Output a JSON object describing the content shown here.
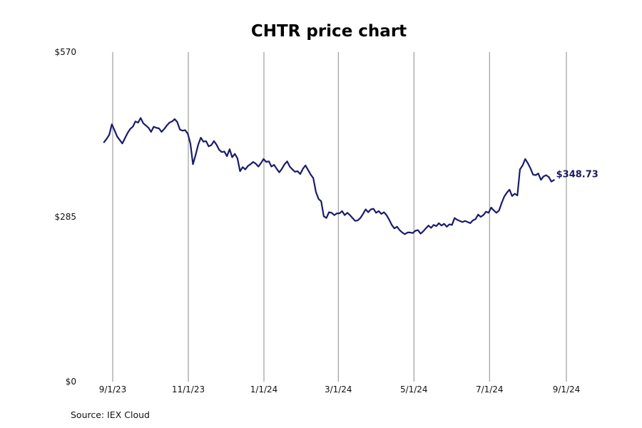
{
  "chart_data": {
    "type": "line",
    "title": "CHTR price chart",
    "source": "Source: IEX Cloud",
    "xlabel": "",
    "ylabel": "",
    "x_start": "2023-08-25",
    "x_end": "2024-08-22",
    "xlim": [
      "2023-08-25",
      "2024-09-01"
    ],
    "ylim": [
      0,
      570
    ],
    "x_ticks": [
      {
        "date": "2023-09-01",
        "label": "9/1/23"
      },
      {
        "date": "2023-11-01",
        "label": "11/1/23"
      },
      {
        "date": "2024-01-01",
        "label": "1/1/24"
      },
      {
        "date": "2024-03-01",
        "label": "3/1/24"
      },
      {
        "date": "2024-05-01",
        "label": "5/1/24"
      },
      {
        "date": "2024-07-01",
        "label": "7/1/24"
      },
      {
        "date": "2024-09-01",
        "label": "9/1/24"
      }
    ],
    "y_ticks": [
      {
        "value": 570,
        "label": "$570"
      },
      {
        "value": 285,
        "label": "$285"
      },
      {
        "value": 0,
        "label": "$0"
      }
    ],
    "grid": {
      "vertical": true,
      "horizontal": false
    },
    "end_label": "$348.73",
    "line_color": "#1b1b6b",
    "series": [
      {
        "values": [
          414,
          420,
          427,
          445,
          435,
          424,
          418,
          412,
          421,
          430,
          437,
          441,
          450,
          448,
          456,
          447,
          443,
          439,
          432,
          441,
          439,
          438,
          432,
          437,
          443,
          448,
          450,
          454,
          449,
          436,
          434,
          435,
          429,
          412,
          376,
          392,
          410,
          422,
          415,
          416,
          407,
          409,
          416,
          410,
          401,
          397,
          398,
          390,
          402,
          388,
          394,
          386,
          364,
          371,
          367,
          373,
          376,
          380,
          377,
          372,
          378,
          385,
          380,
          381,
          372,
          375,
          368,
          362,
          368,
          376,
          381,
          372,
          367,
          363,
          364,
          359,
          368,
          374,
          366,
          358,
          352,
          328,
          316,
          312,
          286,
          283,
          293,
          292,
          288,
          291,
          291,
          295,
          288,
          292,
          288,
          283,
          278,
          279,
          283,
          290,
          298,
          293,
          298,
          299,
          292,
          295,
          290,
          293,
          288,
          280,
          271,
          265,
          268,
          262,
          258,
          255,
          258,
          258,
          257,
          261,
          262,
          256,
          260,
          265,
          270,
          266,
          271,
          269,
          274,
          270,
          273,
          268,
          272,
          271,
          283,
          280,
          278,
          276,
          278,
          276,
          274,
          279,
          281,
          289,
          285,
          288,
          294,
          292,
          301,
          296,
          292,
          296,
          309,
          320,
          327,
          332,
          321,
          325,
          322,
          367,
          374,
          385,
          378,
          369,
          358,
          357,
          360,
          349,
          355,
          357,
          354,
          346,
          348.73
        ]
      }
    ]
  }
}
